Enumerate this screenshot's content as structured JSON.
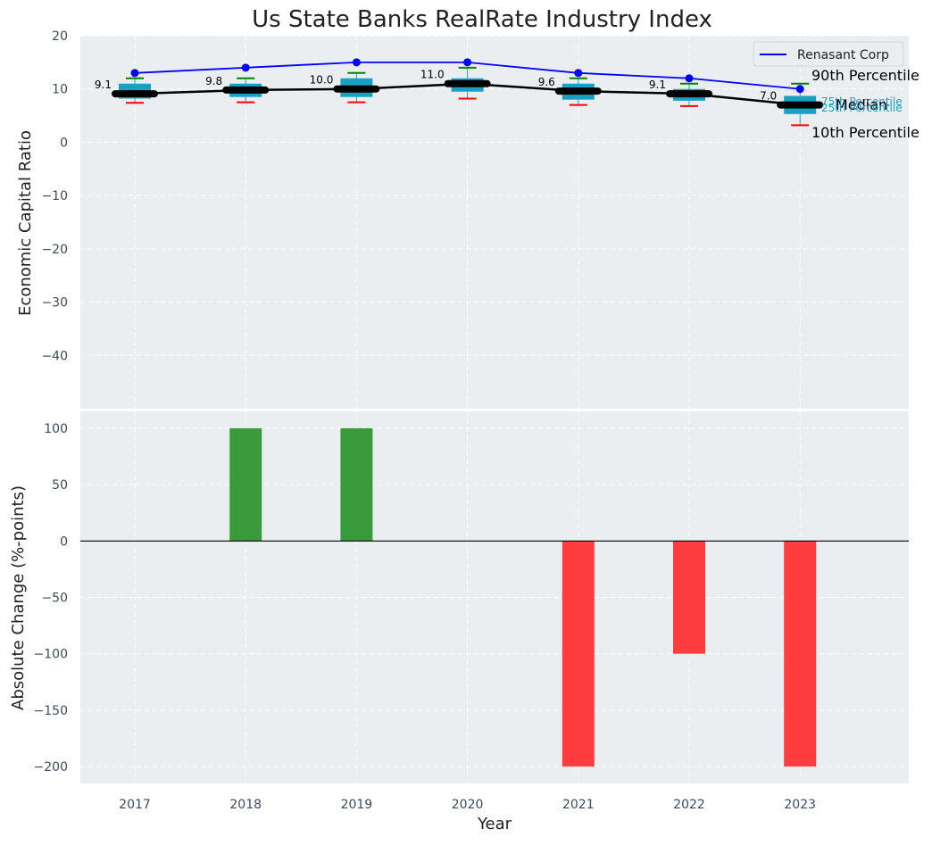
{
  "chart_data": [
    {
      "type": "box-line",
      "title": "Us State Banks RealRate Industry Index",
      "xlabel": "",
      "ylabel": "Economic Capital Ratio",
      "ylim": [
        -50,
        20
      ],
      "yticks": [
        20,
        10,
        0,
        -10,
        -20,
        -30,
        -40
      ],
      "grid": true,
      "categories": [
        "2017",
        "2018",
        "2019",
        "2020",
        "2021",
        "2022",
        "2023"
      ],
      "boxes": [
        {
          "year": "2017",
          "p10": 7.4,
          "p25": 8.2,
          "median": 9.1,
          "p75": 11.0,
          "p90": 12.0,
          "label": "9.1"
        },
        {
          "year": "2018",
          "p10": 7.5,
          "p25": 8.5,
          "median": 9.8,
          "p75": 11.0,
          "p90": 12.0,
          "label": "9.8"
        },
        {
          "year": "2019",
          "p10": 7.5,
          "p25": 8.5,
          "median": 10.0,
          "p75": 12.0,
          "p90": 13.0,
          "label": "10.0"
        },
        {
          "year": "2020",
          "p10": 8.2,
          "p25": 9.5,
          "median": 11.0,
          "p75": 12.0,
          "p90": 14.0,
          "label": "11.0"
        },
        {
          "year": "2021",
          "p10": 7.0,
          "p25": 8.0,
          "median": 9.6,
          "p75": 11.0,
          "p90": 12.0,
          "label": "9.6"
        },
        {
          "year": "2022",
          "p10": 6.8,
          "p25": 7.8,
          "median": 9.1,
          "p75": 10.0,
          "p90": 11.0,
          "label": "9.1"
        },
        {
          "year": "2023",
          "p10": 3.2,
          "p25": 5.3,
          "median": 7.0,
          "p75": 8.7,
          "p90": 11.0,
          "label": "7.0"
        }
      ],
      "series": [
        {
          "name": "Renasant Corp",
          "values": [
            13,
            14,
            15,
            15,
            13,
            12,
            10
          ],
          "color": "#0000ff"
        }
      ],
      "legend": {
        "position": "top-right",
        "entries": [
          "Renasant Corp"
        ]
      },
      "annotations": {
        "p90": "90th Percentile",
        "p75": "75th Percentile",
        "median": "Median",
        "p25": "25th Percentile",
        "p10": "10th Percentile"
      },
      "colors": {
        "box": "#17a2c4",
        "median": "#000000",
        "p90_cap": "#008000",
        "p10_cap": "#ff0000",
        "background": "#eaeef0"
      }
    },
    {
      "type": "bar",
      "title": "",
      "xlabel": "Year",
      "ylabel": "Absolute Change (%-points)",
      "ylim": [
        -215,
        115
      ],
      "yticks": [
        100,
        50,
        0,
        -50,
        -100,
        -150,
        -200
      ],
      "grid": true,
      "categories": [
        "2017",
        "2018",
        "2019",
        "2020",
        "2021",
        "2022",
        "2023"
      ],
      "values": [
        0,
        100,
        100,
        0,
        -200,
        -100,
        -200
      ],
      "colors": {
        "positive": "#3a9b3c",
        "negative": "#ff3d3f",
        "zero_line": "#000000"
      }
    }
  ]
}
